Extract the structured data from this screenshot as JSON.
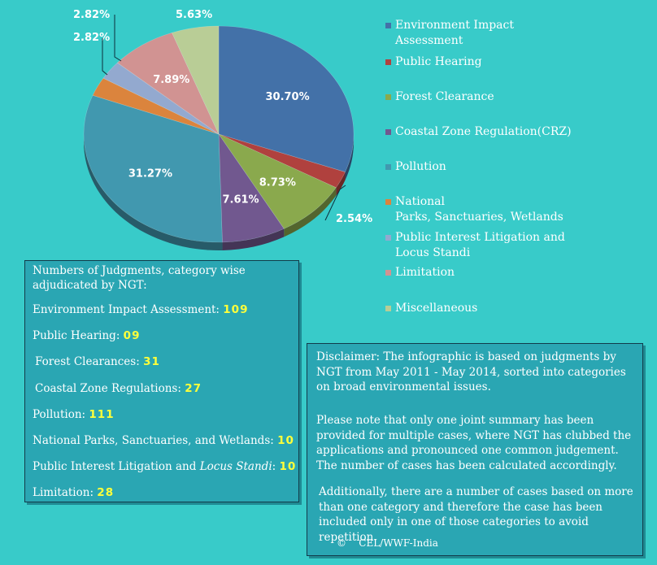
{
  "chart_data": {
    "type": "pie",
    "title": "",
    "slices": [
      {
        "label": "Environment Impact Assessment",
        "value": 30.7,
        "pct_label": "30.70%",
        "color": "#4371a8"
      },
      {
        "label": "Public Hearing",
        "value": 2.54,
        "pct_label": "2.54%",
        "color": "#b0413e"
      },
      {
        "label": "Forest Clearance",
        "value": 8.73,
        "pct_label": "8.73%",
        "color": "#8aa94d"
      },
      {
        "label": "Coastal Zone Regulation(CRZ)",
        "value": 7.61,
        "pct_label": "7.61%",
        "color": "#71588f"
      },
      {
        "label": "Pollution",
        "value": 31.27,
        "pct_label": "31.27%",
        "color": "#4198af"
      },
      {
        "label": "National Parks, Sanctuaries, Wetlands",
        "value": 2.82,
        "pct_label": "2.82%",
        "color": "#db843d"
      },
      {
        "label": "Public Interest Litigation and Locus Standi",
        "value": 2.82,
        "pct_label": "2.82%",
        "color": "#93a9cf"
      },
      {
        "label": "Limitation",
        "value": 7.89,
        "pct_label": "7.89%",
        "color": "#d19392"
      },
      {
        "label": "Miscellaneous",
        "value": 5.63,
        "pct_label": "5.63%",
        "color": "#b9cd96"
      }
    ],
    "legend_position": "right"
  },
  "legend": [
    {
      "label_lines": [
        "Environment Impact",
        "Assessment"
      ],
      "color": "#4371a8"
    },
    {
      "label_lines": [
        "Public Hearing"
      ],
      "color": "#b0413e"
    },
    {
      "label_lines": [
        "Forest Clearance"
      ],
      "color": "#8aa94d"
    },
    {
      "label_lines": [
        "Coastal Zone Regulation(CRZ)"
      ],
      "color": "#71588f"
    },
    {
      "label_lines": [
        "Pollution"
      ],
      "color": "#4198af"
    },
    {
      "label_lines": [
        "National",
        "Parks, Sanctuaries, Wetlands"
      ],
      "color": "#db843d"
    },
    {
      "label_lines": [
        "Public Interest Litigation and",
        "Locus Standi"
      ],
      "color": "#93a9cf"
    },
    {
      "label_lines": [
        "Limitation"
      ],
      "color": "#d19392"
    },
    {
      "label_lines": [
        "Miscellaneous"
      ],
      "color": "#b9cd96"
    }
  ],
  "judgments": {
    "heading_line1": "Numbers of Judgments, category wise",
    "heading_line2": "adjudicated by NGT:",
    "rows": [
      {
        "label": "Environment Impact Assessment:",
        "count": "109"
      },
      {
        "label": "Public Hearing:",
        "count": "09"
      },
      {
        "label": "Forest Clearances:",
        "count": "31"
      },
      {
        "label": "Coastal Zone Regulations:",
        "count": "27"
      },
      {
        "label": "Pollution:",
        "count": "111"
      },
      {
        "label": "National Parks, Sanctuaries, and Wetlands:",
        "count": "10"
      },
      {
        "label_plain": "Public Interest Litigation and ",
        "label_italic": "Locus Standi",
        "label_tail": ":",
        "count": "10"
      },
      {
        "label": "Limitation:",
        "count": "28"
      }
    ]
  },
  "disclaimer": {
    "paragraph1": "Disclaimer: The infographic is based on judgments by NGT from May 2011 - May 2014, sorted into categories on broad environmental issues.",
    "paragraph2": "Please note that only one joint summary has been provided for multiple cases, where NGT has clubbed the applications and pronounced one common judgement. The number of cases has been calculated accordingly.",
    "paragraph3": "Additionally, there are a number of cases based on more than one category and therefore the case has been included only in one of those categories to avoid repetition.",
    "copyright_symbol": "©",
    "copyright_text": "CEL/WWF-India"
  },
  "colors": {
    "background": "#38cbc9",
    "box_fill": "#2aa6b3",
    "box_border": "#123b4a",
    "count_highlight": "#ffff3a"
  }
}
